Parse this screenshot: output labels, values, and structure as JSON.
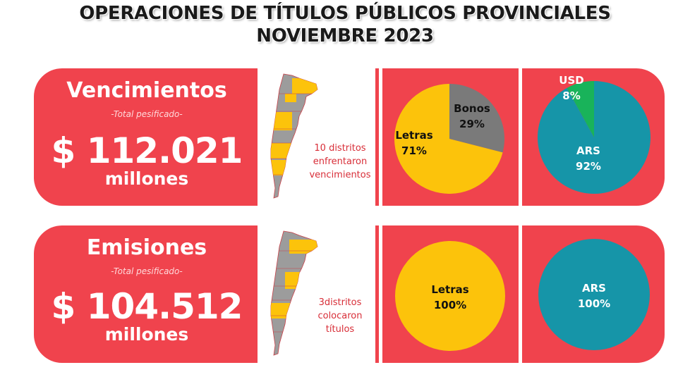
{
  "header": {
    "title_line1": "OPERACIONES DE TÍTULOS PÚBLICOS PROVINCIALES",
    "title_line2": "NOVIEMBRE 2023"
  },
  "colors": {
    "band": "#f0434d",
    "letras": "#fcc30b",
    "bonos": "#7a7a7a",
    "ars": "#1695a8",
    "usd": "#19b35a",
    "map_gray": "#9c9c9c",
    "map_yellow": "#fcc30b"
  },
  "vencimientos": {
    "label": "Vencimientos",
    "sub": "-Total pesificado-",
    "amount": "$ 112.021",
    "unit": "millones",
    "map_text": [
      "10 distritos",
      "enfrentaron",
      "vencimientos"
    ]
  },
  "emisiones": {
    "label": "Emisiones",
    "sub": "-Total pesificado-",
    "amount": "$ 104.512",
    "unit": "millones",
    "map_text": [
      "3distritos",
      "colocaron",
      "títulos"
    ]
  },
  "chart_data": [
    {
      "type": "pie",
      "labels": [
        "Letras",
        "Bonos"
      ],
      "values": [
        71,
        29
      ],
      "value_labels": [
        "71%",
        "29%"
      ],
      "colors": [
        "#fcc30b",
        "#7a7a7a"
      ]
    },
    {
      "type": "pie",
      "labels": [
        "ARS",
        "USD"
      ],
      "values": [
        92,
        8
      ],
      "value_labels": [
        "92%",
        "8%"
      ],
      "colors": [
        "#1695a8",
        "#19b35a"
      ]
    },
    {
      "type": "pie",
      "labels": [
        "Letras"
      ],
      "values": [
        100
      ],
      "value_labels": [
        "100%"
      ],
      "colors": [
        "#fcc30b"
      ]
    },
    {
      "type": "pie",
      "labels": [
        "ARS"
      ],
      "values": [
        100
      ],
      "value_labels": [
        "100%"
      ],
      "colors": [
        "#1695a8"
      ]
    }
  ]
}
